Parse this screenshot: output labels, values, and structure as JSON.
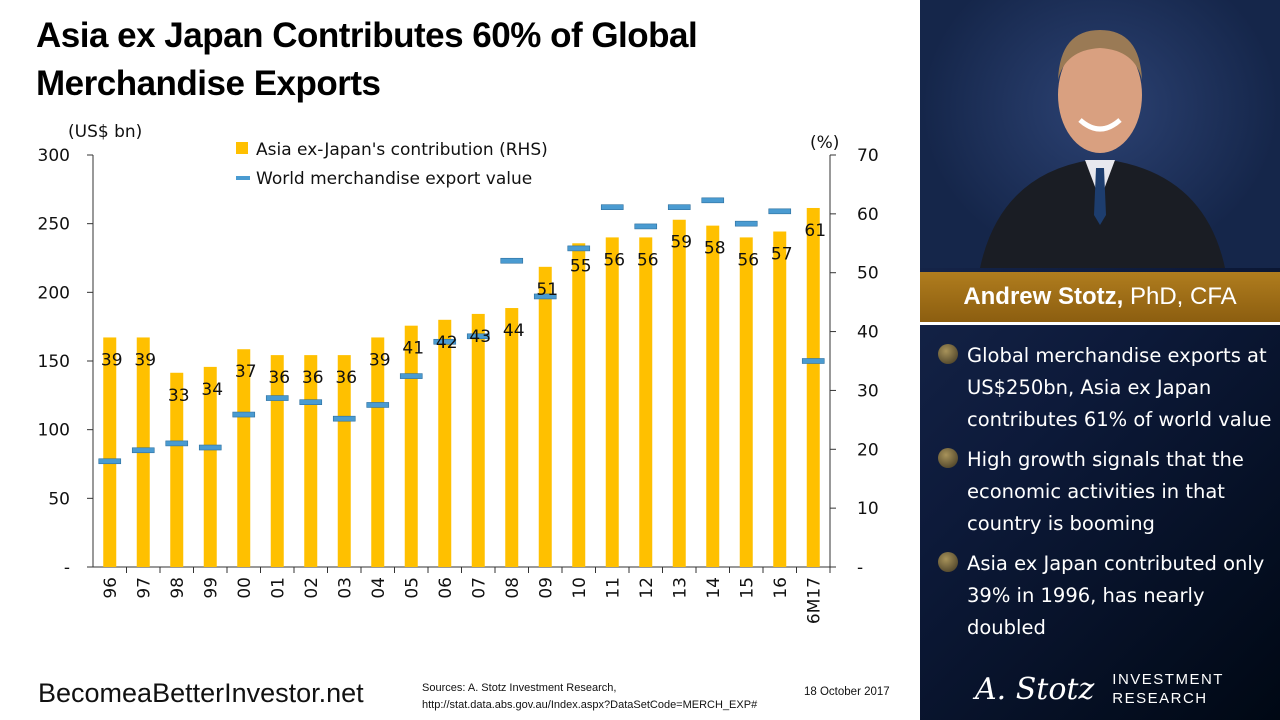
{
  "title": "Asia ex Japan Contributes 60% of Global Merchandise Exports",
  "chart_data": {
    "type": "bar",
    "categories": [
      "96",
      "97",
      "98",
      "99",
      "00",
      "01",
      "02",
      "03",
      "04",
      "05",
      "06",
      "07",
      "08",
      "09",
      "10",
      "11",
      "12",
      "13",
      "14",
      "15",
      "16",
      "6M17"
    ],
    "left_axis": {
      "label": "(US$ bn)",
      "range": [
        0,
        300
      ],
      "ticks": [
        "-",
        "50",
        "100",
        "150",
        "200",
        "250",
        "300"
      ]
    },
    "right_axis": {
      "label": "(%)",
      "range": [
        0,
        70
      ],
      "ticks": [
        "-",
        "10",
        "20",
        "30",
        "40",
        "50",
        "60",
        "70"
      ]
    },
    "legend_position": "top-center",
    "series": [
      {
        "name": "Asia ex-Japan's contribution (RHS)",
        "type": "bar",
        "axis": "right",
        "color": "#FFC000",
        "values": [
          39,
          39,
          33,
          34,
          37,
          36,
          36,
          36,
          39,
          41,
          42,
          43,
          44,
          51,
          55,
          56,
          56,
          59,
          58,
          56,
          57,
          61
        ]
      },
      {
        "name": "World merchandise export value",
        "type": "marker",
        "axis": "left",
        "color": "#4A9BD1",
        "values": [
          77,
          85,
          90,
          87,
          111,
          123,
          120,
          108,
          118,
          139,
          164,
          168,
          223,
          197,
          232,
          262,
          248,
          262,
          267,
          250,
          259,
          150
        ]
      }
    ],
    "grid": false
  },
  "sidebar": {
    "name": "Andrew Stotz,",
    "credentials": " PhD, CFA",
    "bullets": [
      "Global merchandise exports at US$250bn, Asia ex Japan contributes 61% of world value",
      "High growth signals that the economic activities in that country is booming",
      "Asia ex Japan contributed only 39% in 1996, has nearly doubled"
    ],
    "logo_signature": "A. Stotz",
    "logo_line1": "INVESTMENT",
    "logo_line2": "RESEARCH"
  },
  "footer": {
    "site": "BecomeaBetterInvestor.net",
    "sources_line1": "Sources: A. Stotz Investment Research,",
    "sources_line2": "http://stat.data.abs.gov.au/Index.aspx?DataSetCode=MERCH_EXP#",
    "date": "18 October 2017"
  }
}
